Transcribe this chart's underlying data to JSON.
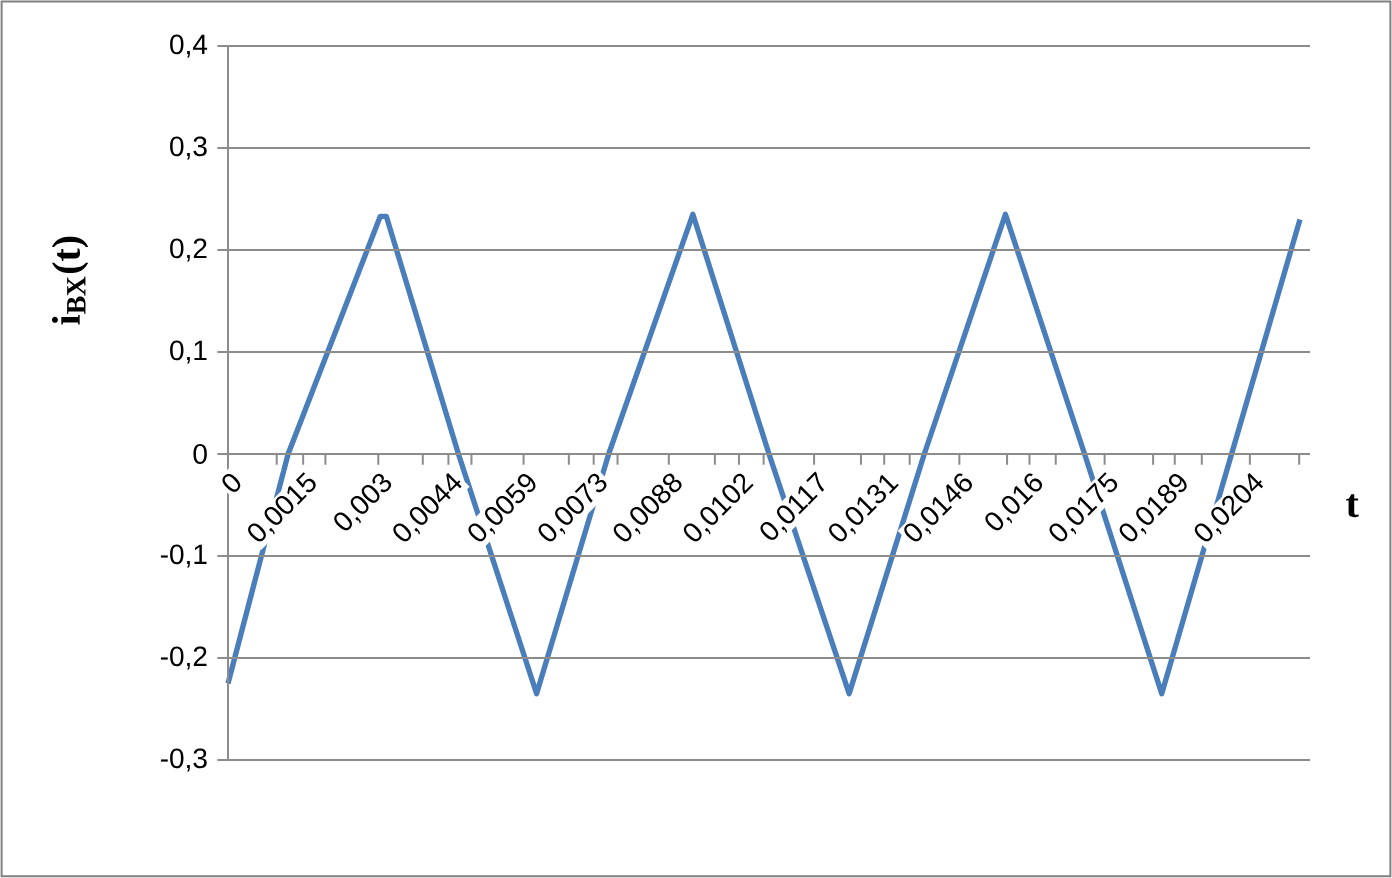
{
  "chart_data": {
    "type": "line",
    "xlabel": "t",
    "ylabel": "i$_{ВХ}$(t)",
    "x": [
      0,
      0.0012,
      0.00304,
      0.00316,
      0.0046,
      0.00616,
      0.0076,
      0.00928,
      0.0108,
      0.0124,
      0.0139,
      0.01552,
      0.0171,
      0.01864,
      0.0214
    ],
    "series": [
      {
        "color": "#4a7ebb",
        "values": [
          -0.225,
          0.0,
          0.233,
          0.233,
          0.0,
          -0.235,
          0.0,
          0.235,
          0.0,
          -0.235,
          0.0,
          0.235,
          0.0,
          -0.235,
          0.23
        ]
      }
    ],
    "xlim": [
      0,
      0.0216
    ],
    "xticks": [
      {
        "value": 0,
        "label": "0"
      },
      {
        "value": 0.000972,
        "label": null
      },
      {
        "value": 0.0015,
        "label": "0,0015"
      },
      {
        "value": 0.001944,
        "label": null
      },
      {
        "value": 0.003,
        "label": "0,003"
      },
      {
        "value": 0.003888,
        "label": null
      },
      {
        "value": 0.0044,
        "label": "0,0044"
      },
      {
        "value": 0.00486,
        "label": null
      },
      {
        "value": 0.0059,
        "label": "0,0059"
      },
      {
        "value": 0.006804,
        "label": null
      },
      {
        "value": 0.0073,
        "label": "0,0073"
      },
      {
        "value": 0.007776,
        "label": null
      },
      {
        "value": 0.0088,
        "label": "0,0088"
      },
      {
        "value": 0.00972,
        "label": null
      },
      {
        "value": 0.0102,
        "label": "0,0102"
      },
      {
        "value": 0.010692,
        "label": null
      },
      {
        "value": 0.0117,
        "label": "0,0117"
      },
      {
        "value": 0.012636,
        "label": null
      },
      {
        "value": 0.0131,
        "label": "0,0131"
      },
      {
        "value": 0.013608,
        "label": null
      },
      {
        "value": 0.0146,
        "label": "0,0146"
      },
      {
        "value": 0.015552,
        "label": null
      },
      {
        "value": 0.016,
        "label": "0,016"
      },
      {
        "value": 0.016524,
        "label": null
      },
      {
        "value": 0.0175,
        "label": "0,0175"
      },
      {
        "value": 0.018468,
        "label": null
      },
      {
        "value": 0.0189,
        "label": "0,0189"
      },
      {
        "value": 0.01944,
        "label": null
      },
      {
        "value": 0.0204,
        "label": "0,0204"
      },
      {
        "value": 0.021384,
        "label": null
      }
    ],
    "ylim": [
      -0.3,
      0.4
    ],
    "yticks": [
      {
        "value": -0.3,
        "label": "-0,3"
      },
      {
        "value": -0.2,
        "label": "-0,2"
      },
      {
        "value": -0.1,
        "label": "-0,1"
      },
      0,
      {
        "value": 0.1,
        "label": "0,1"
      },
      {
        "value": 0.2,
        "label": "0,2"
      },
      {
        "value": 0.3,
        "label": "0,3"
      },
      {
        "value": 0.4,
        "label": "0,4"
      }
    ],
    "grid": "y",
    "legend": false,
    "marker": "none",
    "line_style": "solid"
  }
}
